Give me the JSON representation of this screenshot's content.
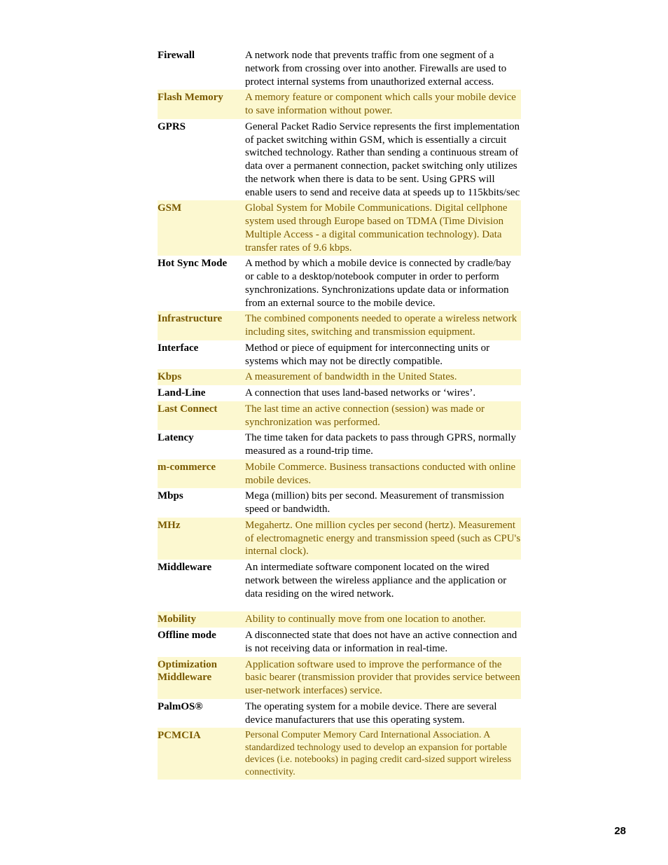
{
  "page_number": "28",
  "colors": {
    "highlight_bg": "#fcf8d0",
    "highlight_text": "#7a5a00",
    "normal_text": "#000000",
    "page_bg": "#ffffff"
  },
  "typography": {
    "body_font": "Times New Roman",
    "body_size_pt": 11,
    "pcmcia_def_size_pt": 10,
    "page_number_font": "Arial",
    "page_number_weight": "bold"
  },
  "glossary": [
    {
      "term": "Firewall",
      "definition": "A network node that prevents traffic from one segment of a network from crossing over into another. Firewalls are used to protect internal systems from unauthorized external access.",
      "highlighted": false
    },
    {
      "term": "Flash Memory",
      "definition": "A memory feature or component which calls your mobile device to save information without power.",
      "highlighted": true
    },
    {
      "term": "GPRS",
      "definition": "General Packet Radio Service represents the first implementation of packet switching within GSM, which is essentially a circuit switched technology. Rather than sending a continuous stream of data over a permanent connection, packet switching only utilizes the network when there is data to be sent. Using GPRS will enable users to send and receive data at speeds up to 115kbits/sec",
      "highlighted": false
    },
    {
      "term": "GSM",
      "definition": "Global System for Mobile Communications. Digital cellphone system used through Europe based on TDMA (Time Division Multiple Access - a digital communication technology). Data transfer rates of 9.6 kbps.",
      "highlighted": true
    },
    {
      "term": "Hot Sync Mode",
      "definition": "A method by which a mobile device is connected by cradle/bay or cable to a desktop/notebook computer in order to perform synchronizations. Synchronizations update data or information from an external source to the mobile device.",
      "highlighted": false
    },
    {
      "term": "Infrastructure",
      "definition": "The combined components needed to operate a wireless network including sites, switching and transmission equipment.",
      "highlighted": true
    },
    {
      "term": "Interface",
      "definition": "Method or piece of equipment for interconnecting units or systems which may not be directly compatible.",
      "highlighted": false
    },
    {
      "term": "Kbps",
      "definition": "A measurement of bandwidth in the United States.",
      "highlighted": true
    },
    {
      "term": "Land-Line",
      "definition": "A connection that uses land-based networks or ‘wires’.",
      "highlighted": false
    },
    {
      "term": "Last Connect",
      "definition": "The last time an active connection (session) was made or synchronization was performed.",
      "highlighted": true
    },
    {
      "term": "Latency",
      "definition": "The time taken for data packets to pass through GPRS, normally measured as a round-trip time.",
      "highlighted": false
    },
    {
      "term": "m-commerce",
      "definition": "Mobile Commerce. Business transactions conducted with online mobile devices.",
      "highlighted": true
    },
    {
      "term": "Mbps",
      "definition": "Mega (million) bits per second. Measurement of transmission speed or bandwidth.",
      "highlighted": false
    },
    {
      "term": "MHz",
      "definition": "Megahertz. One million cycles per second (hertz). Measurement of electromagnetic energy and transmission speed (such as CPU's internal clock).",
      "highlighted": true
    },
    {
      "term": "Middleware",
      "definition": "An intermediate software component located on the wired network between the wireless appliance and the application or data residing on the wired network.",
      "highlighted": false
    },
    {
      "spacer": true
    },
    {
      "term": "Mobility",
      "definition": "Ability to continually move from one location to another.",
      "highlighted": true
    },
    {
      "term": "Offline mode",
      "definition": "A disconnected state that does not have an active connection and is not receiving data or information in real-time.",
      "highlighted": false
    },
    {
      "term": "Optimization Middleware",
      "definition": "Application software used to improve the performance of the basic bearer (transmission provider that provides service between user-network interfaces) service.",
      "highlighted": true
    },
    {
      "term": "PalmOS®",
      "definition": "The operating system for a mobile device. There are several device manufacturers that use this operating system.",
      "highlighted": false
    },
    {
      "term": "PCMCIA",
      "definition": "Personal Computer Memory Card International Association. A standardized technology used to develop an expansion for portable devices (i.e. notebooks) in paging credit card-sized support wireless connectivity.",
      "highlighted": true,
      "smaller": true
    }
  ]
}
